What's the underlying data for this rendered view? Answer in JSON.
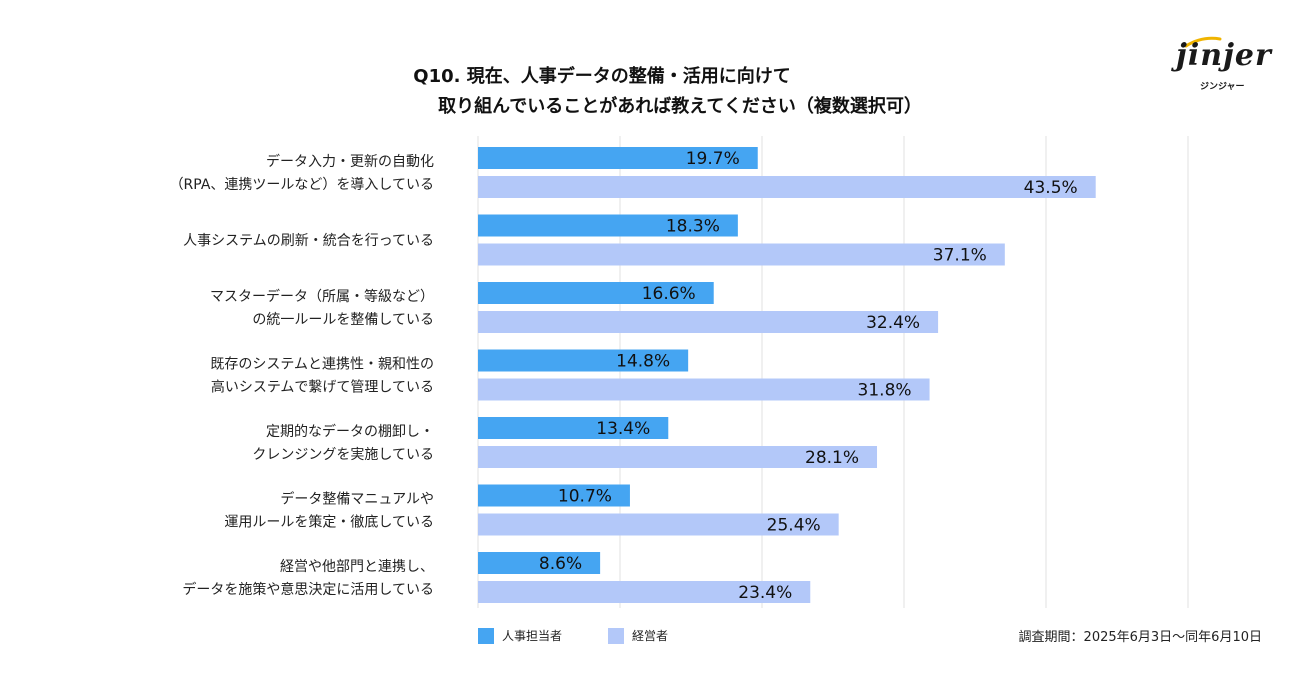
{
  "chart_data": {
    "type": "bar",
    "orientation": "horizontal",
    "title_lines": [
      "Q10. 現在、人事データの整備・活用に向けて",
      "取り組んでいることがあれば教えてください（複数選択可）"
    ],
    "categories": [
      [
        "データ入力・更新の自動化",
        "（RPA、連携ツールなど）を導入している"
      ],
      [
        "人事システムの刷新・統合を行っている"
      ],
      [
        "マスターデータ（所属・等級など）",
        "の統一ルールを整備している"
      ],
      [
        "既存のシステムと連携性・親和性の",
        "高いシステムで繋げて管理している"
      ],
      [
        "定期的なデータの棚卸し・",
        "クレンジングを実施している"
      ],
      [
        "データ整備マニュアルや",
        "運用ルールを策定・徹底している"
      ],
      [
        "経営や他部門と連携し、",
        "データを施策や意思決定に活用している"
      ]
    ],
    "series": [
      {
        "name": "人事担当者",
        "color": "#45a5f2",
        "values": [
          19.7,
          18.3,
          16.6,
          14.8,
          13.4,
          10.7,
          8.6
        ],
        "labels": [
          "19.7%",
          "18.3%",
          "16.6%",
          "14.8%",
          "13.4%",
          "10.7%",
          "8.6%"
        ]
      },
      {
        "name": "経営者",
        "color": "#b3c8f9",
        "values": [
          43.5,
          37.1,
          32.4,
          31.8,
          28.1,
          25.4,
          23.4
        ],
        "labels": [
          "43.5%",
          "37.1%",
          "32.4%",
          "31.8%",
          "28.1%",
          "25.4%",
          "23.4%"
        ]
      }
    ],
    "xlim": [
      0,
      50
    ],
    "grid": true,
    "legend_position": "bottom-left"
  },
  "survey_period": "調査期間：2025年6月3日〜同年6月10日",
  "logo": {
    "wordmark": "jinjer",
    "kana": "ジンジャー"
  }
}
